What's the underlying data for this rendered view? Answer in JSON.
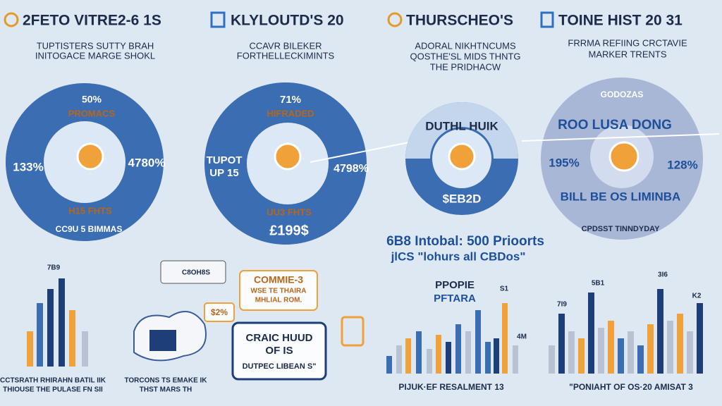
{
  "header": {
    "titles": [
      "2FETO VITRE2‑6 1S",
      "KLYLOUTD'S 20",
      "THURSCHEO'S",
      "TOINE HIST 20 31"
    ]
  },
  "panels": [
    {
      "subtitle": [
        "TUPTISTERS SUTTY BRAH",
        "INITOGACE MARGE SHOKL"
      ],
      "labels": [
        "50%",
        "PROMACS",
        "133%",
        "4780%",
        "H15 FHTS",
        "CC9U 5 BIMMAS"
      ]
    },
    {
      "subtitle": [
        "CCAVR BILEKER",
        "FORTHELLECKIMINTS"
      ],
      "labels": [
        "71%",
        "HIFRADED",
        "TUPOT",
        "UP 15",
        "4798%",
        "UU3 FHTS",
        "£199$"
      ]
    },
    {
      "subtitle": [
        "ADORAL NIKHTNCUMS",
        "QOSTHE'SL MIDS THNTG",
        "THE PRIDHACW"
      ],
      "labels": [
        "DUTHL HUIK",
        "$EB2D"
      ]
    },
    {
      "subtitle": [
        "FRRMA REFIING CRCTAVIE",
        "MARKER TRENTS"
      ],
      "labels": [
        "GODOZAS",
        "ROO LUSA DONG",
        "195%",
        "128%",
        "BILL BE OS LIMINBA",
        "CPDSST TINNDYDAY"
      ]
    }
  ],
  "middle": {
    "headline": "6B8 Intobal: 500 Prioorts",
    "subline": "jlCS \"lohurs all CBDos\""
  },
  "callouts": {
    "comment": [
      "COMMIE-3",
      "WSE TE THAIRA",
      "MHLIAL ROM."
    ],
    "percent": "$2%",
    "box": [
      "CRAIC HUUD",
      "OF IS",
      "DUTPEC LIBEAN S\""
    ],
    "tag": "C8OH8S"
  },
  "charts": [
    {
      "labels": [
        "7B9"
      ],
      "caption": [
        "CCTSRATH RHIRAHN BATIL IIK",
        "THIOUSE THE PULASE FN SII"
      ]
    },
    {
      "caption": [
        "TORCONS TS EMAKE IK",
        "THST MARS TH"
      ]
    },
    {
      "title": [
        "PPOPIE",
        "PFTARA"
      ],
      "labels": [
        "S1",
        "4M"
      ],
      "caption": [
        "PIJUK·EF RESALMENT 13"
      ]
    },
    {
      "labels": [
        "7I9",
        "5B1",
        "3I6",
        "K2"
      ],
      "caption": [
        "\"PONIAHT OF OS·20 AMISAT 3"
      ]
    }
  ]
}
